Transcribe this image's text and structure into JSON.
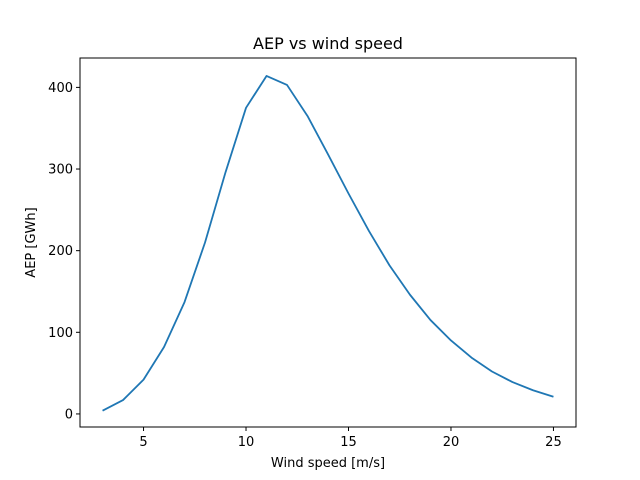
{
  "chart_data": {
    "type": "line",
    "title": "AEP vs wind speed",
    "xlabel": "Wind speed [m/s]",
    "ylabel": "AEP [GWh]",
    "xlim": [
      1.9,
      26.1
    ],
    "ylim": [
      -16,
      436
    ],
    "xticks": [
      5,
      10,
      15,
      20,
      25
    ],
    "yticks": [
      0,
      100,
      200,
      300,
      400
    ],
    "grid": false,
    "series": [
      {
        "color": "#1f77b4",
        "x": [
          3,
          4,
          5,
          6,
          7,
          8,
          9,
          10,
          11,
          12,
          13,
          14,
          15,
          16,
          17,
          18,
          19,
          20,
          21,
          22,
          23,
          24,
          25
        ],
        "y": [
          4,
          17,
          42,
          82,
          137,
          210,
          296,
          375,
          414,
          403,
          365,
          318,
          270,
          224,
          182,
          146,
          115,
          90,
          69,
          52,
          39,
          29,
          21
        ]
      }
    ]
  }
}
